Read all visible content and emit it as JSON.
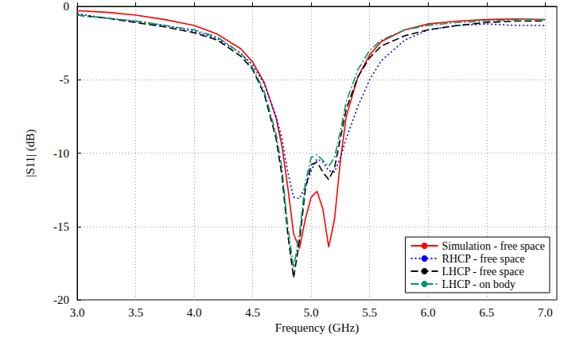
{
  "chart_data": {
    "type": "line",
    "x_label": "Frequency (GHz)",
    "y_label": "|S11| (dB)",
    "xlim": [
      3.0,
      7.1
    ],
    "xticks": [
      {
        "value": 3,
        "label": "3.0"
      },
      {
        "value": 3.5,
        "label": "3.5"
      },
      {
        "value": 4,
        "label": "4.0"
      },
      {
        "value": 4.5,
        "label": "4.5"
      },
      {
        "value": 5,
        "label": "5.0"
      },
      {
        "value": 5.5,
        "label": "5.5"
      },
      {
        "value": 6,
        "label": "6.0"
      },
      {
        "value": 6.5,
        "label": "6.5"
      },
      {
        "value": 7,
        "label": "7.0"
      }
    ],
    "ylim": [
      -20,
      0
    ],
    "yticks": [
      -20,
      -15,
      -10,
      -5,
      0
    ],
    "grid": true,
    "legend": "lower right",
    "x": [
      3.0,
      3.25,
      3.5,
      3.75,
      4.0,
      4.2,
      4.4,
      4.5,
      4.6,
      4.7,
      4.75,
      4.8,
      4.85,
      4.9,
      4.95,
      5.0,
      5.05,
      5.1,
      5.15,
      5.2,
      5.25,
      5.3,
      5.4,
      5.5,
      5.6,
      5.8,
      6.0,
      6.25,
      6.5,
      6.75,
      7.0
    ],
    "series": [
      {
        "name": "Simulation - free space",
        "color": "#ff0000",
        "line_style": "solid",
        "values": [
          -0.3,
          -0.4,
          -0.6,
          -0.9,
          -1.3,
          -1.9,
          -2.9,
          -3.8,
          -5.2,
          -7.6,
          -9.5,
          -12.3,
          -15.5,
          -16.5,
          -14.5,
          -13.0,
          -12.6,
          -13.8,
          -16.4,
          -14.5,
          -10.5,
          -7.5,
          -4.8,
          -3.3,
          -2.4,
          -1.6,
          -1.2,
          -1.0,
          -0.9,
          -0.85,
          -0.9
        ]
      },
      {
        "name": "RHCP - free space",
        "color": "#0000ff",
        "line_style": "dotted",
        "values": [
          -0.5,
          -0.8,
          -1.0,
          -1.3,
          -1.7,
          -2.2,
          -3.2,
          -4.0,
          -5.3,
          -7.5,
          -9.0,
          -11.3,
          -13.0,
          -13.1,
          -12.3,
          -11.2,
          -10.4,
          -10.6,
          -11.2,
          -11.3,
          -10.3,
          -9.0,
          -6.8,
          -5.0,
          -3.7,
          -2.3,
          -1.6,
          -1.3,
          -1.2,
          -1.3,
          -1.3
        ]
      },
      {
        "name": "LHCP - free space",
        "color": "#000000",
        "line_style": "dashed",
        "values": [
          -0.6,
          -0.8,
          -1.1,
          -1.4,
          -1.8,
          -2.3,
          -3.4,
          -4.3,
          -6.0,
          -9.0,
          -11.5,
          -15.5,
          -18.5,
          -16.0,
          -12.5,
          -10.8,
          -10.6,
          -11.3,
          -11.8,
          -11.0,
          -9.0,
          -7.0,
          -4.8,
          -3.5,
          -2.7,
          -2.0,
          -1.6,
          -1.3,
          -1.1,
          -1.0,
          -1.0
        ]
      },
      {
        "name": "LHCP - on body",
        "color": "#009966",
        "line_style": "dashdot",
        "values": [
          -0.6,
          -0.8,
          -1.0,
          -1.3,
          -1.6,
          -2.1,
          -3.2,
          -4.2,
          -5.8,
          -8.7,
          -11.0,
          -15.0,
          -17.8,
          -15.5,
          -12.0,
          -10.3,
          -10.1,
          -10.5,
          -10.9,
          -10.3,
          -8.5,
          -6.5,
          -4.3,
          -3.0,
          -2.3,
          -1.6,
          -1.3,
          -1.1,
          -1.0,
          -0.9,
          -0.9
        ]
      }
    ]
  }
}
